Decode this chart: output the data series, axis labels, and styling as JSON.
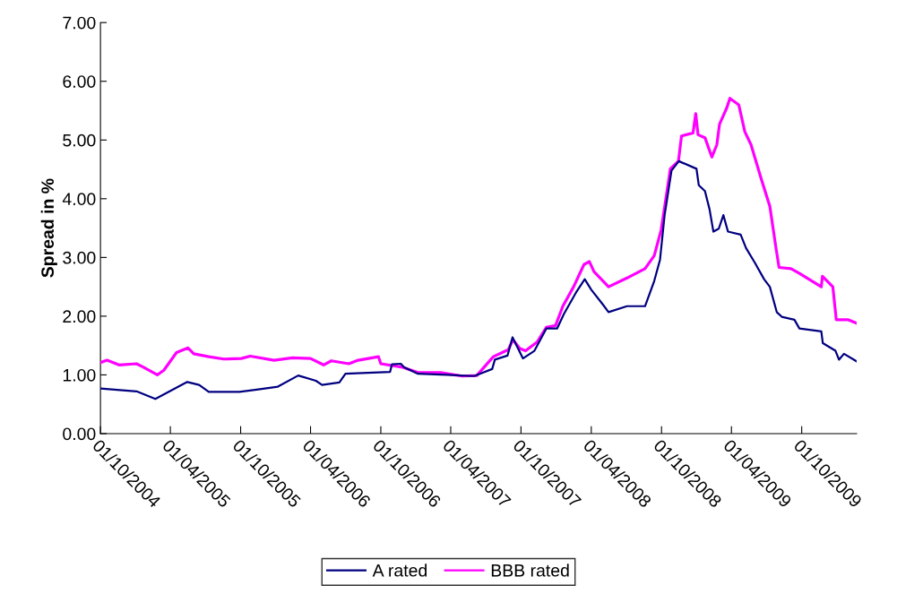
{
  "chart_data": {
    "type": "line",
    "ylabel": "Spread in %",
    "ylim": [
      0,
      7
    ],
    "yticks": [
      {
        "value": 0,
        "label": "0.00"
      },
      {
        "value": 1,
        "label": "1.00"
      },
      {
        "value": 2,
        "label": "2.00"
      },
      {
        "value": 3,
        "label": "3.00"
      },
      {
        "value": 4,
        "label": "4.00"
      },
      {
        "value": 5,
        "label": "5.00"
      },
      {
        "value": 6,
        "label": "6.00"
      },
      {
        "value": 7,
        "label": "7.00"
      }
    ],
    "xlim": [
      "2004-10-01",
      "2010-02-21"
    ],
    "xticks": [
      {
        "value": "2004-10-01",
        "label": "01/10/2004"
      },
      {
        "value": "2005-04-01",
        "label": "01/04/2005"
      },
      {
        "value": "2005-10-01",
        "label": "01/10/2005"
      },
      {
        "value": "2006-04-01",
        "label": "01/04/2006"
      },
      {
        "value": "2006-10-01",
        "label": "01/10/2006"
      },
      {
        "value": "2007-04-01",
        "label": "01/04/2007"
      },
      {
        "value": "2007-10-01",
        "label": "01/10/2007"
      },
      {
        "value": "2008-04-01",
        "label": "01/04/2008"
      },
      {
        "value": "2008-10-01",
        "label": "01/10/2008"
      },
      {
        "value": "2009-04-01",
        "label": "01/04/2009"
      },
      {
        "value": "2009-10-01",
        "label": "01/10/2009"
      }
    ],
    "grid": false,
    "legend": "bottom",
    "marker": "none",
    "line_style": "solid",
    "series": [
      {
        "name": "A rated",
        "color": "#000080",
        "x": [
          "2004-10-01",
          "2005-01-03",
          "2005-02-21",
          "2005-05-15",
          "2005-06-15",
          "2005-07-10",
          "2005-09-28",
          "2005-11-12",
          "2006-01-06",
          "2006-02-28",
          "2006-04-15",
          "2006-05-01",
          "2006-06-15",
          "2006-07-01",
          "2006-10-25",
          "2006-10-30",
          "2006-11-22",
          "2006-12-01",
          "2007-01-06",
          "2007-03-22",
          "2007-06-01",
          "2007-07-18",
          "2007-07-25",
          "2007-08-27",
          "2007-09-09",
          "2007-10-06",
          "2007-11-05",
          "2007-12-06",
          "2008-01-03",
          "2008-01-21",
          "2008-02-21",
          "2008-03-15",
          "2008-04-01",
          "2008-05-01",
          "2008-05-16",
          "2008-07-03",
          "2008-08-19",
          "2008-09-12",
          "2008-09-27",
          "2008-10-09",
          "2008-10-27",
          "2008-11-15",
          "2008-12-31",
          "2009-01-06",
          "2009-01-22",
          "2009-02-03",
          "2009-02-13",
          "2009-02-27",
          "2009-03-11",
          "2009-03-23",
          "2009-04-25",
          "2009-05-09",
          "2009-06-01",
          "2009-06-25",
          "2009-07-10",
          "2009-07-28",
          "2009-08-10",
          "2009-09-12",
          "2009-09-25",
          "2009-11-21",
          "2009-11-25",
          "2009-12-28",
          "2010-01-06",
          "2010-01-19",
          "2010-02-21"
        ],
        "values": [
          0.77,
          0.72,
          0.59,
          0.88,
          0.83,
          0.71,
          0.71,
          0.75,
          0.8,
          0.99,
          0.9,
          0.83,
          0.87,
          1.02,
          1.05,
          1.18,
          1.19,
          1.13,
          1.02,
          1.0,
          0.98,
          1.1,
          1.26,
          1.33,
          1.64,
          1.28,
          1.41,
          1.79,
          1.79,
          2.04,
          2.4,
          2.63,
          2.45,
          2.2,
          2.07,
          2.17,
          2.17,
          2.6,
          2.96,
          3.72,
          4.48,
          4.64,
          4.51,
          4.23,
          4.13,
          3.82,
          3.44,
          3.49,
          3.72,
          3.44,
          3.39,
          3.16,
          2.91,
          2.63,
          2.5,
          2.07,
          1.99,
          1.94,
          1.79,
          1.74,
          1.54,
          1.41,
          1.26,
          1.36,
          1.23
        ]
      },
      {
        "name": "BBB rated",
        "color": "#ff00ff",
        "x": [
          "2004-10-01",
          "2004-10-18",
          "2004-11-18",
          "2005-01-03",
          "2005-01-21",
          "2005-02-26",
          "2005-03-15",
          "2005-04-17",
          "2005-05-17",
          "2005-06-01",
          "2005-07-10",
          "2005-08-18",
          "2005-10-03",
          "2005-10-26",
          "2005-12-27",
          "2006-02-13",
          "2006-04-01",
          "2006-05-05",
          "2006-05-25",
          "2006-07-10",
          "2006-08-03",
          "2006-09-25",
          "2006-10-01",
          "2006-11-27",
          "2007-01-06",
          "2007-03-06",
          "2007-05-01",
          "2007-06-08",
          "2007-07-21",
          "2007-08-29",
          "2007-09-10",
          "2007-09-28",
          "2007-10-13",
          "2007-11-12",
          "2007-12-06",
          "2007-12-30",
          "2008-01-18",
          "2008-02-15",
          "2008-03-13",
          "2008-03-27",
          "2008-04-08",
          "2008-05-16",
          "2008-07-03",
          "2008-08-19",
          "2008-09-12",
          "2008-09-30",
          "2008-10-24",
          "2008-11-14",
          "2008-11-22",
          "2008-12-22",
          "2008-12-29",
          "2009-01-04",
          "2009-01-22",
          "2009-02-09",
          "2009-02-22",
          "2009-03-01",
          "2009-03-20",
          "2009-03-28",
          "2009-04-20",
          "2009-05-06",
          "2009-05-22",
          "2009-06-18",
          "2009-07-10",
          "2009-07-26",
          "2009-08-03",
          "2009-09-03",
          "2009-09-25",
          "2009-11-21",
          "2009-11-24",
          "2009-12-21",
          "2009-12-30",
          "2010-01-29",
          "2010-02-21"
        ],
        "values": [
          1.21,
          1.25,
          1.17,
          1.19,
          1.13,
          1.0,
          1.08,
          1.38,
          1.46,
          1.36,
          1.31,
          1.27,
          1.28,
          1.32,
          1.25,
          1.29,
          1.28,
          1.17,
          1.24,
          1.19,
          1.25,
          1.31,
          1.19,
          1.13,
          1.04,
          1.04,
          0.98,
          0.99,
          1.31,
          1.43,
          1.6,
          1.45,
          1.41,
          1.56,
          1.81,
          1.84,
          2.17,
          2.5,
          2.88,
          2.93,
          2.76,
          2.5,
          2.65,
          2.81,
          3.03,
          3.47,
          4.51,
          4.64,
          5.07,
          5.12,
          5.45,
          5.09,
          5.04,
          4.71,
          4.92,
          5.27,
          5.55,
          5.71,
          5.6,
          5.14,
          4.92,
          4.33,
          3.87,
          3.16,
          2.83,
          2.81,
          2.73,
          2.5,
          2.68,
          2.5,
          1.94,
          1.94,
          1.88
        ]
      }
    ]
  }
}
